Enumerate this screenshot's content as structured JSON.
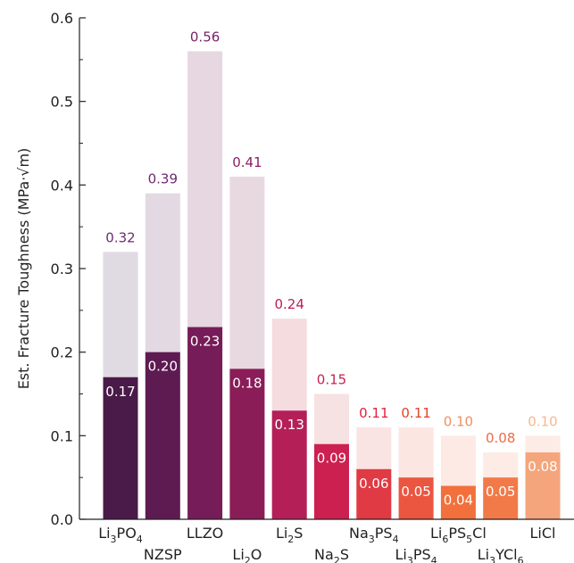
{
  "chart_data": {
    "type": "bar",
    "title": "",
    "xlabel": "",
    "ylabel": "Est. Fracture Toughness (MPa·√m)",
    "ylim": [
      0.0,
      0.6
    ],
    "yticks": [
      "0.0",
      "0.1",
      "0.2",
      "0.3",
      "0.4",
      "0.5",
      "0.6"
    ],
    "grid": false,
    "legend": "none",
    "categories": [
      {
        "base": "Li",
        "sub": "3",
        "mid": "PO",
        "sub2": "4",
        "tail": ""
      },
      {
        "base": "NZSP",
        "sub": "",
        "mid": "",
        "sub2": "",
        "tail": ""
      },
      {
        "base": "LLZO",
        "sub": "",
        "mid": "",
        "sub2": "",
        "tail": ""
      },
      {
        "base": "Li",
        "sub": "2",
        "mid": "O",
        "sub2": "",
        "tail": ""
      },
      {
        "base": "Li",
        "sub": "2",
        "mid": "S",
        "sub2": "",
        "tail": ""
      },
      {
        "base": "Na",
        "sub": "2",
        "mid": "S",
        "sub2": "",
        "tail": ""
      },
      {
        "base": "Na",
        "sub": "3",
        "mid": "PS",
        "sub2": "4",
        "tail": ""
      },
      {
        "base": "Li",
        "sub": "3",
        "mid": "PS",
        "sub2": "4",
        "tail": ""
      },
      {
        "base": "Li",
        "sub": "6",
        "mid": "PS",
        "sub2": "5",
        "tail": "Cl"
      },
      {
        "base": "Li",
        "sub": "3",
        "mid": "YCl",
        "sub2": "6",
        "tail": ""
      },
      {
        "base": "LiCl",
        "sub": "",
        "mid": "",
        "sub2": "",
        "tail": ""
      }
    ],
    "series": [
      {
        "values": [
          0.32,
          0.39,
          0.56,
          0.41,
          0.24,
          0.15,
          0.11,
          0.11,
          0.1,
          0.08,
          0.1
        ],
        "labels": [
          "0.32",
          "0.39",
          "0.56",
          "0.41",
          "0.24",
          "0.15",
          "0.11",
          "0.11",
          "0.10",
          "0.08",
          "0.10"
        ]
      },
      {
        "values": [
          0.17,
          0.2,
          0.23,
          0.18,
          0.13,
          0.09,
          0.06,
          0.05,
          0.04,
          0.05,
          0.08
        ],
        "labels": [
          "0.17",
          "0.20",
          "0.23",
          "0.18",
          "0.13",
          "0.09",
          "0.06",
          "0.05",
          "0.04",
          "0.05",
          "0.08"
        ]
      }
    ],
    "colors": {
      "dark": [
        "#4a1a48",
        "#5e1b52",
        "#761c58",
        "#8a1c58",
        "#b41f58",
        "#cc2050",
        "#e03a44",
        "#ea5640",
        "#f2703c",
        "#f27a48",
        "#f5a57c"
      ],
      "light": [
        "#e0dae2",
        "#e2d9e2",
        "#e6d7e0",
        "#e8d9e1",
        "#f4dcdf",
        "#f7e2e3",
        "#fae4e3",
        "#fbe6e2",
        "#fdeae5",
        "#fdebe5",
        "#fdebe5"
      ],
      "top_label": [
        "#6e2b6e",
        "#6e2b6e",
        "#7a2068",
        "#8b1d63",
        "#bd1c5a",
        "#c82052",
        "#e0203a",
        "#e34128",
        "#f28e60",
        "#ee6b46",
        "#f8b88c"
      ],
      "inner_label": "#ffffff"
    }
  }
}
